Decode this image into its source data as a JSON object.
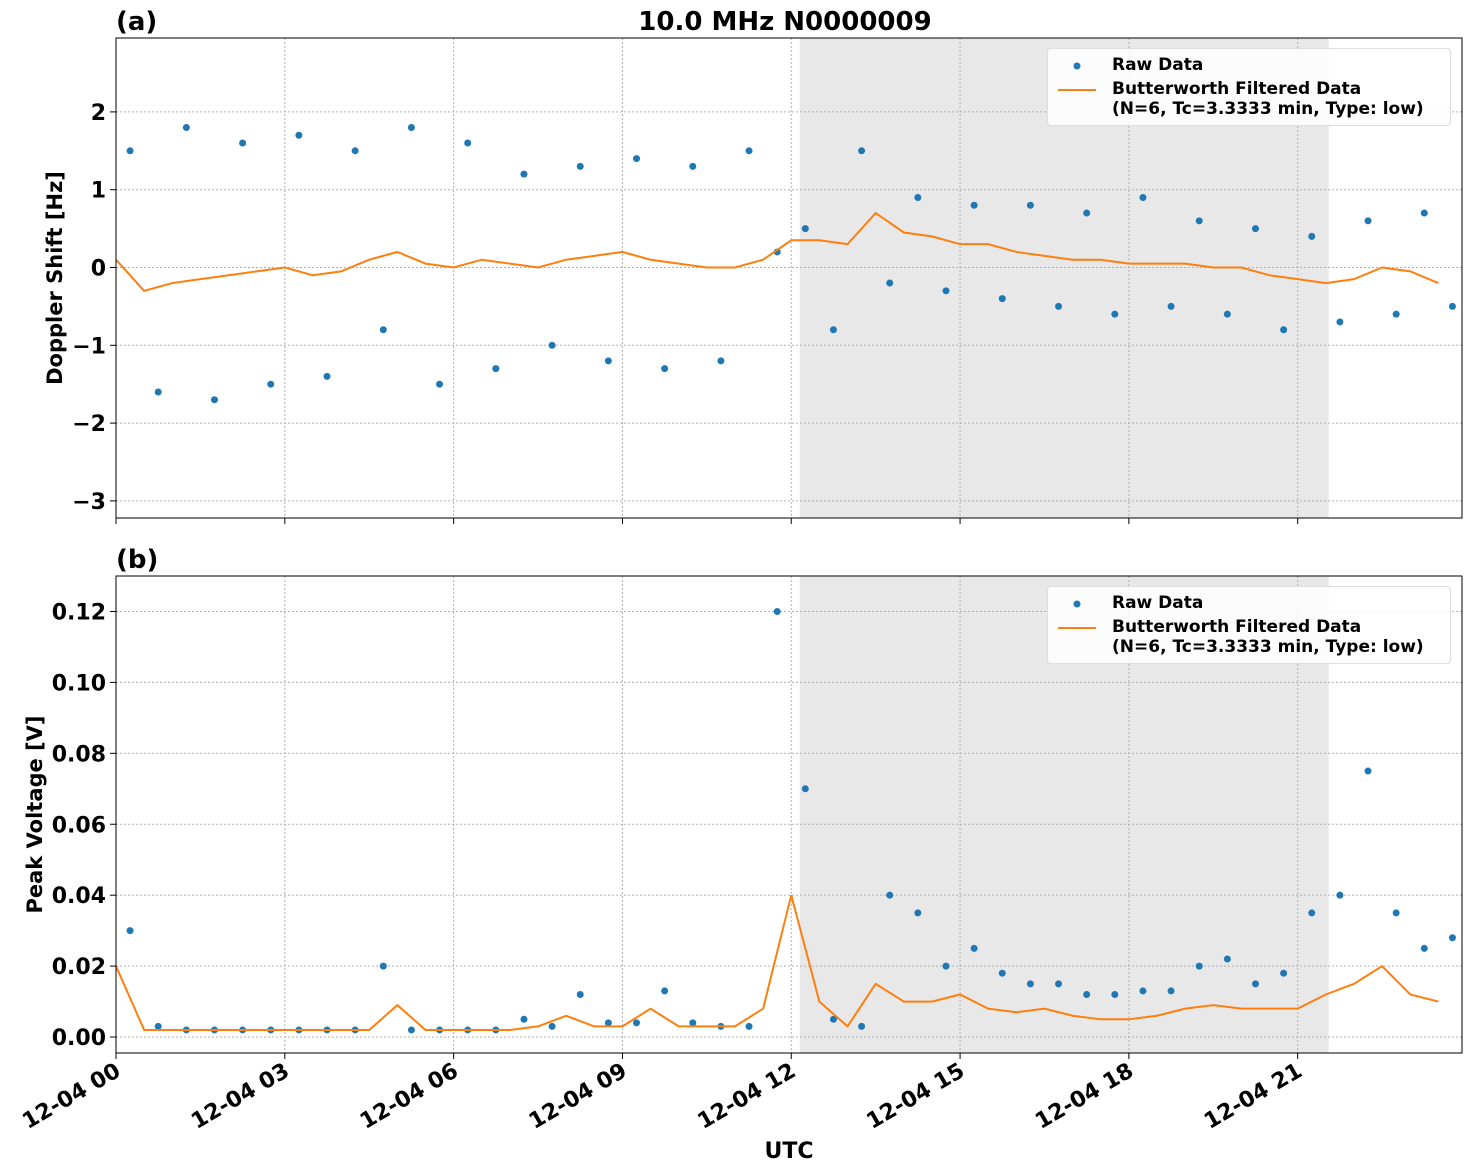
{
  "chart_data": [
    {
      "type": "line",
      "title": "10.0 MHz N0000009",
      "panel_label": "(a)",
      "ylabel": "Doppler Shift [Hz]",
      "xlim": [
        0,
        23.92
      ],
      "xticks": [
        0,
        3,
        6,
        9,
        12,
        15,
        18,
        21
      ],
      "ylim": [
        -3.22,
        2.95
      ],
      "yticks": [
        {
          "value": -3,
          "label": "−3"
        },
        {
          "value": -2,
          "label": "−2"
        },
        {
          "value": -1,
          "label": "−1"
        },
        0,
        1,
        2
      ],
      "grid": true,
      "legend": "upper right",
      "shaded_span": [
        12.15,
        21.55
      ],
      "shade_color": "#e8e8e8",
      "series": [
        {
          "name": "Raw Data",
          "type": "scatter",
          "color": "#1f77b4",
          "x": [
            0.25,
            0.75,
            1.25,
            1.75,
            2.25,
            2.75,
            3.25,
            3.75,
            4.25,
            4.75,
            5.25,
            5.75,
            6.25,
            6.75,
            7.25,
            7.75,
            8.25,
            8.75,
            9.25,
            9.75,
            10.25,
            10.75,
            11.25,
            11.75,
            12.25,
            12.75,
            13.25,
            13.75,
            14.25,
            14.75,
            15.25,
            15.75,
            16.25,
            16.75,
            17.25,
            17.75,
            18.25,
            18.75,
            19.25,
            19.75,
            20.25,
            20.75,
            21.25,
            21.75,
            22.25,
            22.75,
            23.25,
            23.75
          ],
          "values": [
            1.5,
            -1.6,
            1.8,
            -1.7,
            1.6,
            -1.5,
            1.7,
            -1.4,
            1.5,
            -0.8,
            1.8,
            -1.5,
            1.6,
            -1.3,
            1.2,
            -1.0,
            1.3,
            -1.2,
            1.4,
            -1.3,
            1.3,
            -1.2,
            1.5,
            0.2,
            0.5,
            -0.8,
            1.5,
            -0.2,
            0.9,
            -0.3,
            0.8,
            -0.4,
            0.8,
            -0.5,
            0.7,
            -0.6,
            0.9,
            -0.5,
            0.6,
            -0.6,
            0.5,
            -0.8,
            0.4,
            -0.7,
            0.6,
            -0.6,
            0.7,
            -0.5
          ]
        },
        {
          "name": "Butterworth Filtered Data\n(N=6, Tc=3.3333 min, Type: low)",
          "type": "line",
          "color": "#ff7f0e",
          "x": [
            0,
            0.5,
            1,
            1.5,
            2,
            2.5,
            3,
            3.5,
            4,
            4.5,
            5,
            5.5,
            6,
            6.5,
            7,
            7.5,
            8,
            8.5,
            9,
            9.5,
            10,
            10.5,
            11,
            11.5,
            12,
            12.5,
            13,
            13.5,
            14,
            14.5,
            15,
            15.5,
            16,
            16.5,
            17,
            17.5,
            18,
            18.5,
            19,
            19.5,
            20,
            20.5,
            21,
            21.5,
            22,
            22.5,
            23,
            23.5
          ],
          "values": [
            0.1,
            -0.3,
            -0.2,
            -0.15,
            -0.1,
            -0.05,
            0.0,
            -0.1,
            -0.05,
            0.1,
            0.2,
            0.05,
            0.0,
            0.1,
            0.05,
            0.0,
            0.1,
            0.15,
            0.2,
            0.1,
            0.05,
            0.0,
            0.0,
            0.1,
            0.35,
            0.35,
            0.3,
            0.7,
            0.45,
            0.4,
            0.3,
            0.3,
            0.2,
            0.15,
            0.1,
            0.1,
            0.05,
            0.05,
            0.05,
            0.0,
            0.0,
            -0.1,
            -0.15,
            -0.2,
            -0.15,
            0.0,
            -0.05,
            -0.2
          ]
        }
      ]
    },
    {
      "type": "line",
      "panel_label": "(b)",
      "ylabel": "Peak Voltage [V]",
      "xlabel": "UTC",
      "xlim": [
        0,
        23.92
      ],
      "xticks": [
        {
          "value": 0,
          "label": "12-04 00"
        },
        {
          "value": 3,
          "label": "12-04 03"
        },
        {
          "value": 6,
          "label": "12-04 06"
        },
        {
          "value": 9,
          "label": "12-04 09"
        },
        {
          "value": 12,
          "label": "12-04 12"
        },
        {
          "value": 15,
          "label": "12-04 15"
        },
        {
          "value": 18,
          "label": "12-04 18"
        },
        {
          "value": 21,
          "label": "12-04 21"
        }
      ],
      "ylim": [
        -0.0045,
        0.13
      ],
      "yticks": [
        {
          "value": 0,
          "label": "0.00"
        },
        0.02,
        0.04,
        0.06,
        0.08,
        {
          "value": 0.1,
          "label": "0.10"
        },
        0.12
      ],
      "grid": true,
      "legend": "upper right",
      "shaded_span": [
        12.15,
        21.55
      ],
      "shade_color": "#e8e8e8",
      "series": [
        {
          "name": "Raw Data",
          "type": "scatter",
          "color": "#1f77b4",
          "x": [
            0.25,
            0.75,
            1.25,
            1.75,
            2.25,
            2.75,
            3.25,
            3.75,
            4.25,
            4.75,
            5.25,
            5.75,
            6.25,
            6.75,
            7.25,
            7.75,
            8.25,
            8.75,
            9.25,
            9.75,
            10.25,
            10.75,
            11.25,
            11.75,
            12.25,
            12.75,
            13.25,
            13.75,
            14.25,
            14.75,
            15.25,
            15.75,
            16.25,
            16.75,
            17.25,
            17.75,
            18.25,
            18.75,
            19.25,
            19.75,
            20.25,
            20.75,
            21.25,
            21.75,
            22.25,
            22.75,
            23.25,
            23.75
          ],
          "values": [
            0.03,
            0.003,
            0.002,
            0.002,
            0.002,
            0.002,
            0.002,
            0.002,
            0.002,
            0.02,
            0.002,
            0.002,
            0.002,
            0.002,
            0.005,
            0.003,
            0.012,
            0.004,
            0.004,
            0.013,
            0.004,
            0.003,
            0.003,
            0.12,
            0.07,
            0.005,
            0.003,
            0.04,
            0.035,
            0.02,
            0.025,
            0.018,
            0.015,
            0.015,
            0.012,
            0.012,
            0.013,
            0.013,
            0.02,
            0.022,
            0.015,
            0.018,
            0.035,
            0.04,
            0.075,
            0.035,
            0.025,
            0.028
          ]
        },
        {
          "name": "Butterworth Filtered Data\n(N=6, Tc=3.3333 min, Type: low)",
          "type": "line",
          "color": "#ff7f0e",
          "x": [
            0,
            0.5,
            1,
            1.5,
            2,
            2.5,
            3,
            3.5,
            4,
            4.5,
            5,
            5.5,
            6,
            6.5,
            7,
            7.5,
            8,
            8.5,
            9,
            9.5,
            10,
            10.5,
            11,
            11.5,
            12,
            12.5,
            13,
            13.5,
            14,
            14.5,
            15,
            15.5,
            16,
            16.5,
            17,
            17.5,
            18,
            18.5,
            19,
            19.5,
            20,
            20.5,
            21,
            21.5,
            22,
            22.5,
            23,
            23.5
          ],
          "values": [
            0.02,
            0.002,
            0.002,
            0.002,
            0.002,
            0.002,
            0.002,
            0.002,
            0.002,
            0.002,
            0.009,
            0.002,
            0.002,
            0.002,
            0.002,
            0.003,
            0.006,
            0.003,
            0.003,
            0.008,
            0.003,
            0.003,
            0.003,
            0.008,
            0.04,
            0.01,
            0.003,
            0.015,
            0.01,
            0.01,
            0.012,
            0.008,
            0.007,
            0.008,
            0.006,
            0.005,
            0.005,
            0.006,
            0.008,
            0.009,
            0.008,
            0.008,
            0.008,
            0.012,
            0.015,
            0.02,
            0.012,
            0.01
          ]
        }
      ]
    }
  ]
}
